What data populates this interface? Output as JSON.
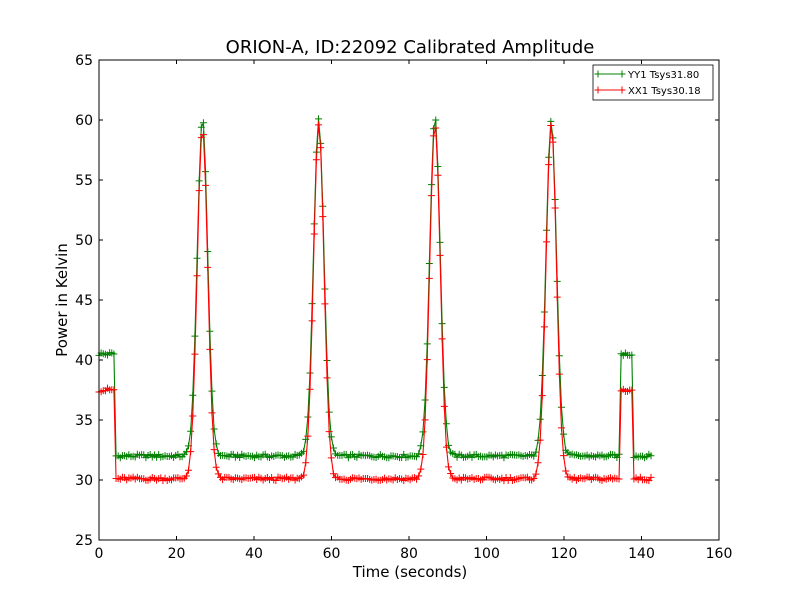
{
  "chart_data": {
    "type": "line",
    "title": "ORION-A, ID:22092 Calibrated Amplitude",
    "xlabel": "Time (seconds)",
    "ylabel": "Power in Kelvin",
    "xlim": [
      0,
      160
    ],
    "ylim": [
      25,
      65
    ],
    "x_ticks": [
      "0",
      "20",
      "40",
      "60",
      "80",
      "100",
      "120",
      "140",
      "160"
    ],
    "y_ticks": [
      "25",
      "30",
      "35",
      "40",
      "45",
      "50",
      "55",
      "60",
      "65"
    ],
    "grid": false,
    "legend_position": "top-right",
    "marker": "+",
    "series": [
      {
        "name": "YY1 Tsys31.80",
        "color": "#008000",
        "baseline": 32.0,
        "cal_level": 40.5,
        "cal_windows": [
          [
            0,
            4.2
          ],
          [
            134.5,
            137.8
          ]
        ],
        "data_end": 142.5,
        "peaks": [
          {
            "center": 26.7,
            "amplitude": 60.1
          },
          {
            "center": 56.7,
            "amplitude": 60.0
          },
          {
            "center": 86.7,
            "amplitude": 60.3
          },
          {
            "center": 116.7,
            "amplitude": 60.1
          }
        ],
        "peak_sigma": 1.35
      },
      {
        "name": "XX1 Tsys30.18",
        "color": "#ff0000",
        "baseline": 30.1,
        "cal_level": 37.5,
        "cal_windows": [
          [
            0,
            4.2
          ],
          [
            134.5,
            137.8
          ]
        ],
        "data_end": 142.5,
        "peaks": [
          {
            "center": 26.7,
            "amplitude": 59.2
          },
          {
            "center": 56.7,
            "amplitude": 59.5
          },
          {
            "center": 86.7,
            "amplitude": 59.6
          },
          {
            "center": 116.7,
            "amplitude": 59.6
          }
        ],
        "peak_sigma": 1.35
      }
    ]
  }
}
